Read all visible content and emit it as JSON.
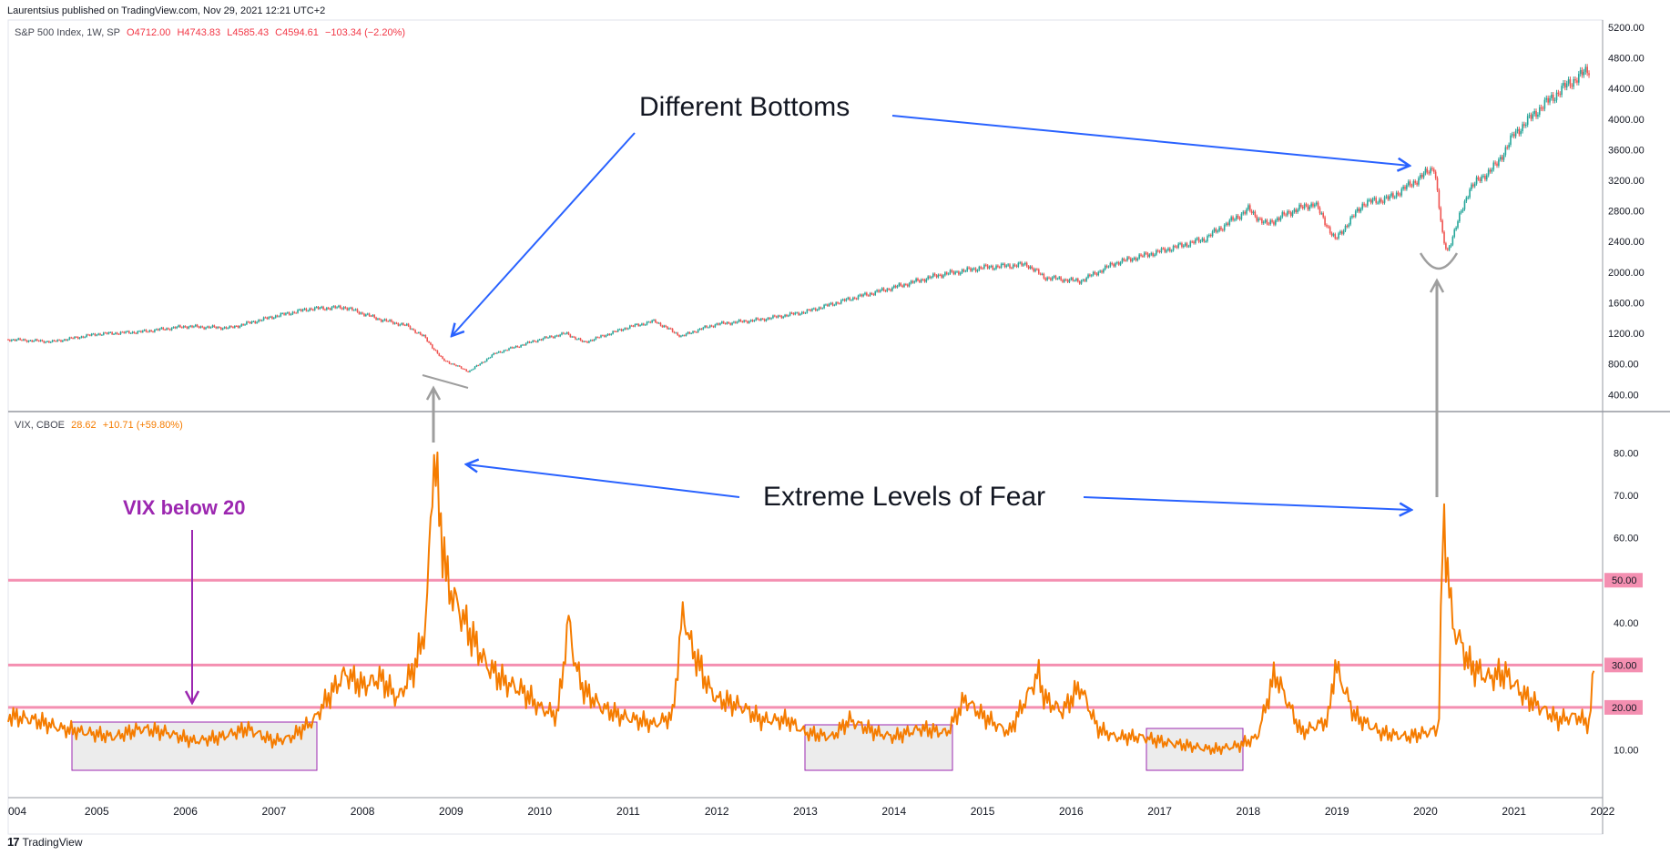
{
  "header": {
    "publisher": "Laurentsius published on TradingView.com, Nov 29, 2021 12:21 UTC+2"
  },
  "sp500_legend": {
    "name": "S&P 500 Index, 1W, SP",
    "open": "O4712.00",
    "high": "H4743.83",
    "low": "L4585.43",
    "close": "C4594.61",
    "change": "−103.34 (−2.20%)"
  },
  "vix_legend": {
    "name": "VIX, CBOE",
    "value": "28.62",
    "change": "+10.71 (+59.80%)"
  },
  "annotations": {
    "different_bottoms": "Different Bottoms",
    "extreme_fear": "Extreme Levels of Fear",
    "vix_below_20": "VIX below 20"
  },
  "footer": {
    "brand": "TradingView",
    "logo": "17"
  },
  "colors": {
    "vix_line": "#f57c00",
    "up_candle": "#26a69a",
    "down_candle": "#ef5350",
    "arrow_blue": "#2962ff",
    "arrow_gray": "#9e9e9e",
    "level_line": "#f48fb1",
    "purple": "#9c27b0"
  },
  "chart_data": [
    {
      "type": "candlestick",
      "title": "S&P 500 Index, 1W, SP",
      "ylim": [
        320,
        5200
      ],
      "y_ticks": [
        "400.00",
        "800.00",
        "1200.00",
        "1600.00",
        "2000.00",
        "2400.00",
        "2800.00",
        "3200.00",
        "3600.00",
        "4000.00",
        "4400.00",
        "4800.00",
        "5200.00"
      ],
      "x_ticks": [
        "004",
        "2005",
        "2006",
        "2007",
        "2008",
        "2009",
        "2010",
        "2011",
        "2012",
        "2013",
        "2014",
        "2015",
        "2016",
        "2017",
        "2018",
        "2019",
        "2020",
        "2021",
        "2022"
      ],
      "x_range": [
        2004.0,
        2022.0
      ],
      "series": [
        {
          "x": [
            2004.0,
            2004.5,
            2005.0,
            2005.5,
            2006.0,
            2006.5,
            2007.0,
            2007.4,
            2007.8,
            2008.2,
            2008.5,
            2008.7,
            2008.9,
            2009.2,
            2009.5,
            2010.0,
            2010.3,
            2010.5,
            2011.0,
            2011.3,
            2011.6,
            2011.8,
            2012.0,
            2012.5,
            2013.0,
            2013.5,
            2014.0,
            2014.5,
            2015.0,
            2015.5,
            2015.7,
            2016.1,
            2016.5,
            2017.0,
            2017.5,
            2018.0,
            2018.2,
            2018.5,
            2018.75,
            2018.98,
            2019.3,
            2019.6,
            2019.9,
            2020.1,
            2020.2,
            2020.25,
            2020.5,
            2020.8,
            2021.0,
            2021.3,
            2021.6,
            2021.85
          ],
          "y": [
            1120,
            1090,
            1190,
            1220,
            1290,
            1270,
            1420,
            1520,
            1540,
            1380,
            1300,
            1150,
            860,
            700,
            940,
            1120,
            1200,
            1080,
            1280,
            1360,
            1160,
            1250,
            1320,
            1380,
            1480,
            1650,
            1800,
            1960,
            2060,
            2100,
            1930,
            1880,
            2120,
            2270,
            2430,
            2820,
            2620,
            2800,
            2900,
            2420,
            2900,
            2970,
            3200,
            3380,
            2400,
            2280,
            3100,
            3400,
            3800,
            4150,
            4450,
            4650
          ]
        }
      ]
    },
    {
      "type": "line",
      "title": "VIX, CBOE",
      "ylim": [
        0,
        87
      ],
      "y_ticks": [
        "10.00",
        "20.00",
        "30.00",
        "40.00",
        "50.00",
        "60.00",
        "70.00",
        "80.00"
      ],
      "levels": [
        {
          "value": 50,
          "label": "50.00"
        },
        {
          "value": 30,
          "label": "30.00"
        },
        {
          "value": 20,
          "label": "20.00"
        }
      ],
      "series": [
        {
          "x": [
            2004.0,
            2004.3,
            2004.6,
            2004.9,
            2005.2,
            2005.5,
            2005.8,
            2006.1,
            2006.4,
            2006.7,
            2007.0,
            2007.2,
            2007.45,
            2007.6,
            2007.8,
            2008.0,
            2008.2,
            2008.4,
            2008.6,
            2008.72,
            2008.8,
            2008.85,
            2008.9,
            2008.95,
            2009.05,
            2009.2,
            2009.4,
            2009.6,
            2009.8,
            2010.0,
            2010.2,
            2010.33,
            2010.4,
            2010.5,
            2010.7,
            2010.9,
            2011.1,
            2011.3,
            2011.5,
            2011.62,
            2011.7,
            2011.8,
            2011.9,
            2012.0,
            2012.3,
            2012.5,
            2012.8,
            2013.0,
            2013.3,
            2013.5,
            2013.8,
            2014.0,
            2014.3,
            2014.6,
            2014.8,
            2015.0,
            2015.3,
            2015.63,
            2015.7,
            2015.9,
            2016.1,
            2016.3,
            2016.5,
            2016.8,
            2017.0,
            2017.3,
            2017.6,
            2017.9,
            2018.1,
            2018.3,
            2018.6,
            2018.9,
            2018.98,
            2019.2,
            2019.5,
            2019.8,
            2020.0,
            2020.15,
            2020.2,
            2020.3,
            2020.5,
            2020.7,
            2020.9,
            2021.1,
            2021.3,
            2021.5,
            2021.7,
            2021.85,
            2021.9
          ],
          "y": [
            18,
            17,
            15,
            14,
            13,
            15,
            14,
            12,
            13,
            15,
            12,
            13,
            17,
            22,
            28,
            25,
            27,
            22,
            30,
            40,
            80,
            70,
            60,
            50,
            45,
            38,
            30,
            26,
            24,
            20,
            18,
            41,
            30,
            24,
            20,
            18,
            17,
            16,
            18,
            43,
            35,
            30,
            25,
            22,
            20,
            17,
            17,
            14,
            13,
            17,
            14,
            13,
            15,
            14,
            22,
            18,
            14,
            28,
            22,
            19,
            25,
            15,
            13,
            13,
            12,
            11,
            10,
            11,
            13,
            28,
            14,
            17,
            30,
            18,
            14,
            13,
            14,
            15,
            66,
            40,
            30,
            27,
            28,
            23,
            20,
            17,
            18,
            16,
            28.62
          ]
        }
      ]
    }
  ]
}
